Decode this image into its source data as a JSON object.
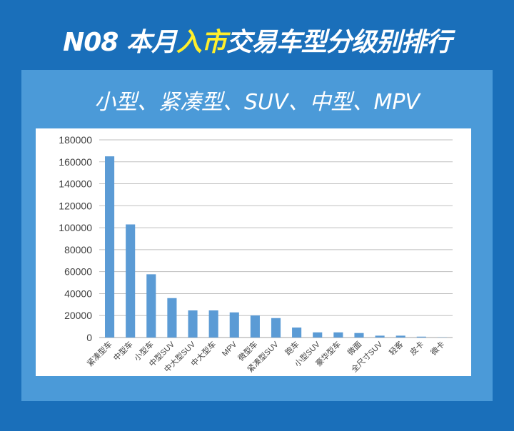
{
  "header": {
    "title_pre": "N08 本月",
    "title_hl": "入市",
    "title_post": "交易车型分级别排行",
    "subtitle": "小型、紧凑型、SUV、中型、MPV"
  },
  "colors": {
    "background": "#1a6fba",
    "panel": "#4b9ad8",
    "bar": "#5b9bd5",
    "highlight": "#ffef2b"
  },
  "chart_data": {
    "type": "bar",
    "categories": [
      "紧凑型车",
      "中型车",
      "小型车",
      "中型SUV",
      "中大型SUV",
      "中大型车",
      "MPV",
      "微型车",
      "紧凑型SUV",
      "跑车",
      "小型SUV",
      "豪华型车",
      "微面",
      "全尺寸SUV",
      "轻客",
      "皮卡",
      "微卡"
    ],
    "values": [
      165000,
      103000,
      57600,
      35900,
      24700,
      24700,
      22900,
      20100,
      17700,
      9100,
      4700,
      4700,
      4100,
      1700,
      1700,
      800,
      200
    ],
    "ylim": [
      0,
      180000
    ],
    "yticks": [
      0,
      20000,
      40000,
      60000,
      80000,
      100000,
      120000,
      140000,
      160000,
      180000
    ],
    "grid": true,
    "legend": "none"
  }
}
